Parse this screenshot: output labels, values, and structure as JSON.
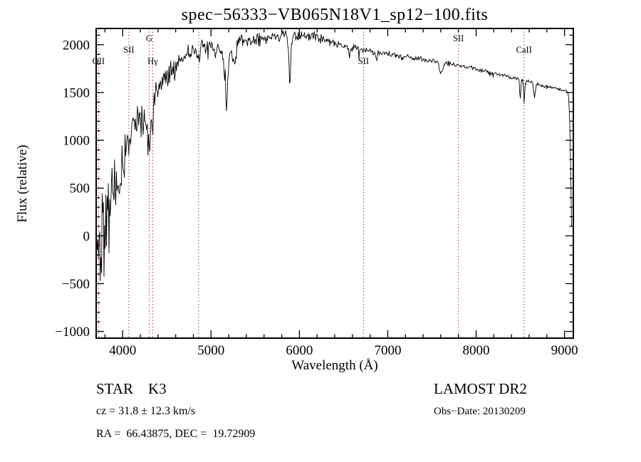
{
  "title": "spec−56333−VB065N18V1_sp12−100.fits",
  "chart_data": {
    "type": "line",
    "title": "spec−56333−VB065N18V1_sp12−100.fits",
    "xlabel": "Wavelength (Å)",
    "ylabel": "Flux (relative)",
    "xlim": [
      3700,
      9100
    ],
    "ylim": [
      -1070,
      2170
    ],
    "xticks": [
      4000,
      5000,
      6000,
      7000,
      8000,
      9000
    ],
    "xtick_labels": [
      "4000",
      "5000",
      "6000",
      "7000",
      "8000",
      "9000"
    ],
    "x_minor_step": 200,
    "yticks": [
      -1000,
      -500,
      0,
      500,
      1000,
      1500,
      2000
    ],
    "ytick_labels": [
      "−1000",
      "−500",
      "0",
      "500",
      "1000",
      "1500",
      "2000"
    ],
    "y_minor_step": 100,
    "grid": false,
    "legend": "none",
    "line_color": "#000000",
    "marker_color": "#9e3a3a",
    "markers": [
      {
        "label": "OII",
        "wavelength": 3727,
        "row": 2
      },
      {
        "label": "SII",
        "wavelength": 4070,
        "row": 1
      },
      {
        "label": "G",
        "wavelength": 4300,
        "row": 0
      },
      {
        "label": "Hγ",
        "wavelength": 4340,
        "row": 2
      },
      {
        "label": "",
        "wavelength": 4861,
        "row": 1
      },
      {
        "label": "SII",
        "wavelength": 6725,
        "row": 2
      },
      {
        "label": "SII",
        "wavelength": 7800,
        "row": 0
      },
      {
        "label": "CaII",
        "wavelength": 8542,
        "row": 1
      }
    ],
    "series": [
      {
        "name": "flux",
        "anchors": [
          [
            3705,
            -50
          ],
          [
            3720,
            60
          ],
          [
            3740,
            -120
          ],
          [
            3760,
            150
          ],
          [
            3780,
            260
          ],
          [
            3800,
            210
          ],
          [
            3820,
            160
          ],
          [
            3840,
            340
          ],
          [
            3860,
            320
          ],
          [
            3880,
            420
          ],
          [
            3900,
            500
          ],
          [
            3920,
            430
          ],
          [
            3935,
            330
          ],
          [
            3950,
            560
          ],
          [
            3970,
            480
          ],
          [
            3990,
            660
          ],
          [
            4010,
            800
          ],
          [
            4030,
            900
          ],
          [
            4050,
            1000
          ],
          [
            4070,
            960
          ],
          [
            4090,
            1100
          ],
          [
            4110,
            1160
          ],
          [
            4130,
            1110
          ],
          [
            4150,
            1150
          ],
          [
            4170,
            1190
          ],
          [
            4190,
            1150
          ],
          [
            4210,
            1230
          ],
          [
            4230,
            1180
          ],
          [
            4250,
            1230
          ],
          [
            4270,
            1190
          ],
          [
            4290,
            1110
          ],
          [
            4305,
            860
          ],
          [
            4320,
            1210
          ],
          [
            4335,
            1060
          ],
          [
            4350,
            1380
          ],
          [
            4380,
            1460
          ],
          [
            4420,
            1520
          ],
          [
            4460,
            1620
          ],
          [
            4500,
            1680
          ],
          [
            4550,
            1720
          ],
          [
            4600,
            1760
          ],
          [
            4650,
            1820
          ],
          [
            4700,
            1870
          ],
          [
            4750,
            1910
          ],
          [
            4800,
            1950
          ],
          [
            4830,
            1950
          ],
          [
            4861,
            1840
          ],
          [
            4880,
            1940
          ],
          [
            4920,
            1970
          ],
          [
            4960,
            1970
          ],
          [
            5000,
            1990
          ],
          [
            5040,
            1940
          ],
          [
            5080,
            1970
          ],
          [
            5120,
            1900
          ],
          [
            5160,
            1720
          ],
          [
            5172,
            1260
          ],
          [
            5190,
            1660
          ],
          [
            5210,
            1860
          ],
          [
            5230,
            1940
          ],
          [
            5270,
            1790
          ],
          [
            5300,
            2020
          ],
          [
            5340,
            2060
          ],
          [
            5380,
            2040
          ],
          [
            5420,
            2060
          ],
          [
            5460,
            2050
          ],
          [
            5500,
            2060
          ],
          [
            5540,
            2050
          ],
          [
            5580,
            2070
          ],
          [
            5620,
            2060
          ],
          [
            5660,
            2080
          ],
          [
            5700,
            2080
          ],
          [
            5740,
            2090
          ],
          [
            5780,
            2090
          ],
          [
            5820,
            2100
          ],
          [
            5860,
            2080
          ],
          [
            5880,
            1920
          ],
          [
            5892,
            1470
          ],
          [
            5905,
            1950
          ],
          [
            5925,
            2070
          ],
          [
            5960,
            2090
          ],
          [
            6000,
            2100
          ],
          [
            6040,
            2095
          ],
          [
            6080,
            2110
          ],
          [
            6120,
            2085
          ],
          [
            6160,
            2090
          ],
          [
            6200,
            2070
          ],
          [
            6240,
            2060
          ],
          [
            6280,
            2050
          ],
          [
            6320,
            2040
          ],
          [
            6360,
            2030
          ],
          [
            6400,
            2020
          ],
          [
            6440,
            2010
          ],
          [
            6480,
            2000
          ],
          [
            6520,
            1990
          ],
          [
            6545,
            1975
          ],
          [
            6563,
            1870
          ],
          [
            6585,
            1970
          ],
          [
            6630,
            1975
          ],
          [
            6670,
            1965
          ],
          [
            6710,
            1955
          ],
          [
            6750,
            1945
          ],
          [
            6790,
            1935
          ],
          [
            6830,
            1930
          ],
          [
            6860,
            1890
          ],
          [
            6872,
            1820
          ],
          [
            6890,
            1920
          ],
          [
            6930,
            1920
          ],
          [
            6970,
            1915
          ],
          [
            7010,
            1905
          ],
          [
            7050,
            1900
          ],
          [
            7090,
            1895
          ],
          [
            7130,
            1885
          ],
          [
            7170,
            1860
          ],
          [
            7210,
            1875
          ],
          [
            7250,
            1870
          ],
          [
            7290,
            1865
          ],
          [
            7330,
            1855
          ],
          [
            7370,
            1850
          ],
          [
            7410,
            1845
          ],
          [
            7450,
            1840
          ],
          [
            7490,
            1835
          ],
          [
            7530,
            1830
          ],
          [
            7570,
            1815
          ],
          [
            7594,
            1690
          ],
          [
            7615,
            1710
          ],
          [
            7645,
            1805
          ],
          [
            7690,
            1805
          ],
          [
            7730,
            1800
          ],
          [
            7770,
            1790
          ],
          [
            7810,
            1785
          ],
          [
            7850,
            1780
          ],
          [
            7890,
            1770
          ],
          [
            7930,
            1760
          ],
          [
            7970,
            1750
          ],
          [
            8010,
            1740
          ],
          [
            8050,
            1732
          ],
          [
            8090,
            1724
          ],
          [
            8130,
            1716
          ],
          [
            8170,
            1708
          ],
          [
            8210,
            1700
          ],
          [
            8250,
            1692
          ],
          [
            8290,
            1684
          ],
          [
            8330,
            1676
          ],
          [
            8370,
            1668
          ],
          [
            8410,
            1660
          ],
          [
            8450,
            1652
          ],
          [
            8485,
            1645
          ],
          [
            8498,
            1420
          ],
          [
            8512,
            1635
          ],
          [
            8530,
            1628
          ],
          [
            8542,
            1390
          ],
          [
            8558,
            1620
          ],
          [
            8600,
            1610
          ],
          [
            8640,
            1598
          ],
          [
            8662,
            1440
          ],
          [
            8680,
            1588
          ],
          [
            8720,
            1578
          ],
          [
            8760,
            1568
          ],
          [
            8800,
            1558
          ],
          [
            8840,
            1550
          ],
          [
            8880,
            1545
          ],
          [
            8920,
            1540
          ],
          [
            8960,
            1532
          ],
          [
            9000,
            1525
          ],
          [
            9030,
            1512
          ],
          [
            9045,
            1480
          ],
          [
            9058,
            1250
          ],
          [
            9070,
            700
          ],
          [
            9080,
            100
          ]
        ]
      }
    ],
    "noise_envelope": [
      [
        3705,
        600
      ],
      [
        3740,
        540
      ],
      [
        3780,
        470
      ],
      [
        3820,
        400
      ],
      [
        3860,
        350
      ],
      [
        3900,
        300
      ],
      [
        3950,
        255
      ],
      [
        4000,
        210
      ],
      [
        4100,
        155
      ],
      [
        4200,
        135
      ],
      [
        4300,
        120
      ],
      [
        4400,
        105
      ],
      [
        4600,
        85
      ],
      [
        4800,
        70
      ],
      [
        5000,
        62
      ],
      [
        5200,
        60
      ],
      [
        5400,
        55
      ],
      [
        5600,
        50
      ],
      [
        5800,
        46
      ],
      [
        6000,
        40
      ],
      [
        6300,
        33
      ],
      [
        6600,
        28
      ],
      [
        7000,
        23
      ],
      [
        7400,
        20
      ],
      [
        7800,
        18
      ],
      [
        8200,
        17
      ],
      [
        8600,
        15
      ],
      [
        9000,
        13
      ],
      [
        9080,
        13
      ]
    ],
    "noise_seed": 42,
    "sample_step": 7
  },
  "footer": {
    "left": {
      "line1": "STAR    K3",
      "line2": "cz = 31.8 ± 12.3 km/s",
      "line3": "RA =  66.43875, DEC =  19.72909"
    },
    "right": {
      "line1": "LAMOST DR2",
      "line2": "Obs−Date: 20130209"
    }
  }
}
